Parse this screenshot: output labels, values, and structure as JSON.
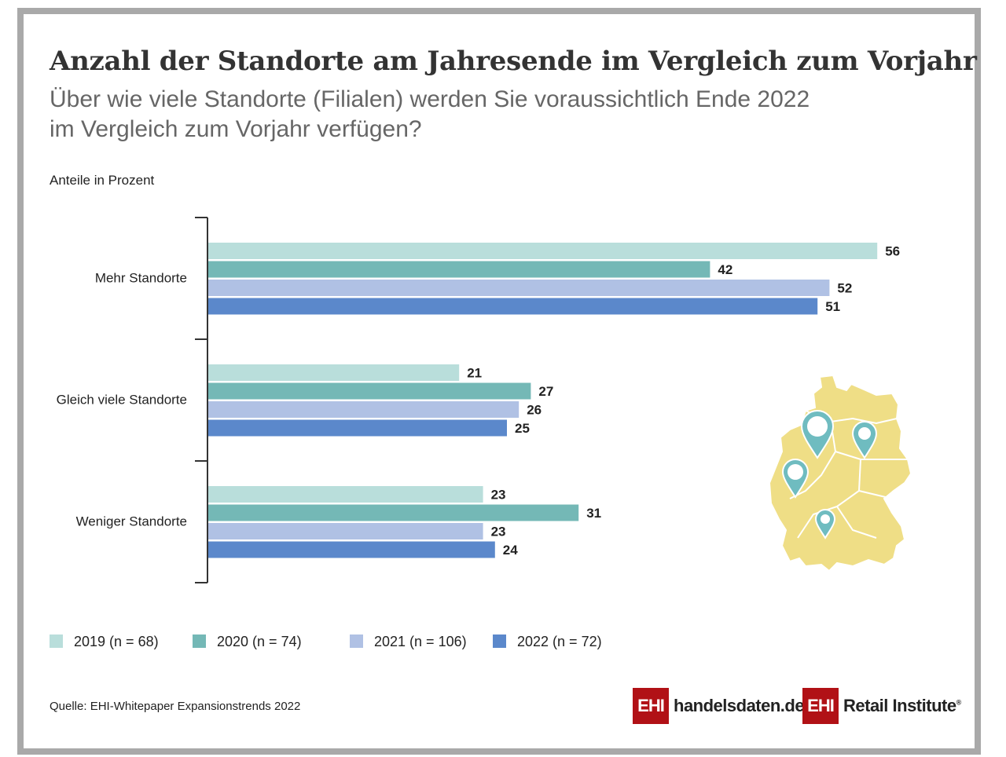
{
  "title": "Anzahl der Standorte am Jahresende im Vergleich zum Vorjahr",
  "subtitle_line1": "Über wie viele Standorte (Filialen) werden Sie voraussichtlich Ende 2022",
  "subtitle_line2": "im Vergleich zum Vorjahr verfügen?",
  "unit_label": "Anteile in Prozent",
  "source": "Quelle: EHI-Whitepaper Expansionstrends 2022",
  "logos": {
    "left_box": "EHI",
    "left_text": "handelsdaten.de",
    "right_box": "EHI",
    "right_text": "Retail Institute",
    "right_mark": "®"
  },
  "colors": {
    "s2019": "#b9dedb",
    "s2020": "#74b8b6",
    "s2021": "#b0c1e4",
    "s2022": "#5b88cb",
    "map_fill": "#efde86",
    "pin": "#6fbcc0",
    "frame": "#a9a9a9"
  },
  "chart_data": {
    "type": "bar",
    "orientation": "horizontal",
    "categories": [
      "Mehr Standorte",
      "Gleich viele Standorte",
      "Weniger Standorte"
    ],
    "series": [
      {
        "name": "2019 (n = 68)",
        "values": [
          56,
          21,
          23
        ]
      },
      {
        "name": "2020 (n = 74)",
        "values": [
          42,
          27,
          31
        ]
      },
      {
        "name": "2021 (n = 106)",
        "values": [
          52,
          26,
          23
        ]
      },
      {
        "name": "2022 (n = 72)",
        "values": [
          51,
          25,
          24
        ]
      }
    ],
    "xlim": [
      0,
      56
    ],
    "data_labels": true,
    "legend_position": "bottom"
  },
  "map_icon": "germany-map-with-location-pins"
}
